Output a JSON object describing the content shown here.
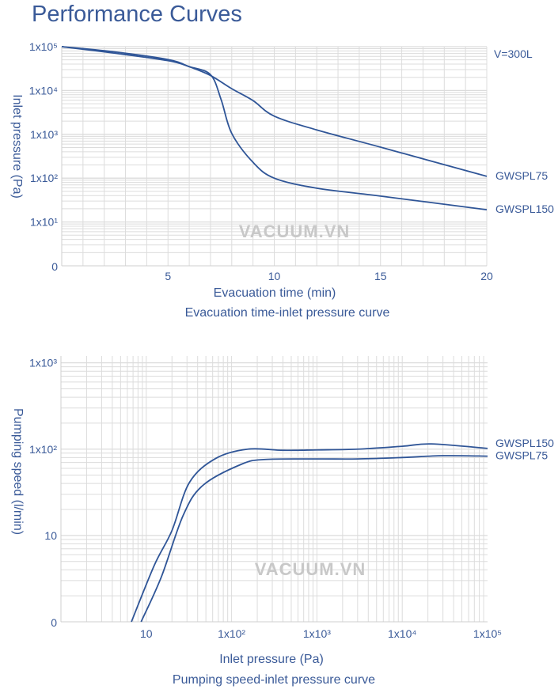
{
  "page_title": "Performance Curves",
  "colors": {
    "line": "#2f5597",
    "text": "#3a5a98",
    "grid": "#dcdcdc",
    "watermark": "#c8c8c8"
  },
  "watermark": "VACUUM.VN",
  "chart_data": [
    {
      "type": "line",
      "title": "Evacuation time-inlet pressure curve",
      "xlabel": "Evacuation time (min)",
      "ylabel": "Inlet pressure (Pa)",
      "annotation": "V=300L",
      "x_scale": "linear",
      "y_scale": "log",
      "xlim": [
        0,
        20
      ],
      "ylim": [
        1,
        100000
      ],
      "grid": true,
      "legend": "right (labels at line ends)",
      "x_ticks": [
        {
          "value": 5,
          "label": "5"
        },
        {
          "value": 10,
          "label": "10"
        },
        {
          "value": 15,
          "label": "15"
        },
        {
          "value": 20,
          "label": "20"
        }
      ],
      "y_ticks": [
        {
          "value": 100000,
          "label": "1x10⁵"
        },
        {
          "value": 10000,
          "label": "1x10⁴"
        },
        {
          "value": 1000,
          "label": "1x10³"
        },
        {
          "value": 100,
          "label": "1x10²"
        },
        {
          "value": 10,
          "label": "1x10¹"
        },
        {
          "value": 1,
          "label": "0"
        }
      ],
      "series": [
        {
          "name": "GWSPL75",
          "x": [
            0,
            2.5,
            5,
            6,
            7,
            8,
            9,
            10,
            12,
            15,
            20
          ],
          "y": [
            100000,
            76000,
            51000,
            35000,
            22000,
            11000,
            5900,
            2600,
            1260,
            510,
            110
          ]
        },
        {
          "name": "GWSPL150",
          "x": [
            0,
            2.5,
            5,
            6,
            7,
            7.5,
            8,
            9,
            10,
            12,
            15,
            20
          ],
          "y": [
            100000,
            71000,
            48000,
            35000,
            23000,
            6200,
            1050,
            230,
            100,
            59,
            39,
            19
          ]
        }
      ]
    },
    {
      "type": "line",
      "title": "Pumping speed-inlet pressure curve",
      "xlabel": "Inlet pressure (Pa)",
      "ylabel": "Pumping speed (l/min)",
      "x_scale": "log",
      "y_scale": "log",
      "xlim": [
        1,
        100000
      ],
      "ylim": [
        1,
        1200
      ],
      "grid": true,
      "legend": "right (labels at line ends)",
      "x_ticks": [
        {
          "value": 10,
          "label": "10"
        },
        {
          "value": 100,
          "label": "1x10²"
        },
        {
          "value": 1000,
          "label": "1x10³"
        },
        {
          "value": 10000,
          "label": "1x10⁴"
        },
        {
          "value": 100000,
          "label": "1x10⁵"
        }
      ],
      "y_ticks": [
        {
          "value": 1000,
          "label": "1x10³"
        },
        {
          "value": 100,
          "label": "1x10²"
        },
        {
          "value": 10,
          "label": "10"
        },
        {
          "value": 1,
          "label": "0"
        }
      ],
      "series": [
        {
          "name": "GWSPL150",
          "x": [
            6.7,
            12.4,
            20,
            32,
            65,
            155,
            400,
            1000,
            3000,
            10000,
            22000,
            100000
          ],
          "y": [
            1,
            4.5,
            11.4,
            41,
            78,
            100,
            97,
            98,
            100,
            108,
            115,
            102
          ]
        },
        {
          "name": "GWSPL75",
          "x": [
            8.7,
            15,
            27,
            46,
            131,
            250,
            1000,
            3000,
            10000,
            30000,
            100000
          ],
          "y": [
            1,
            3.3,
            17,
            38,
            67,
            76,
            77,
            77,
            80,
            84,
            83
          ]
        }
      ]
    }
  ]
}
